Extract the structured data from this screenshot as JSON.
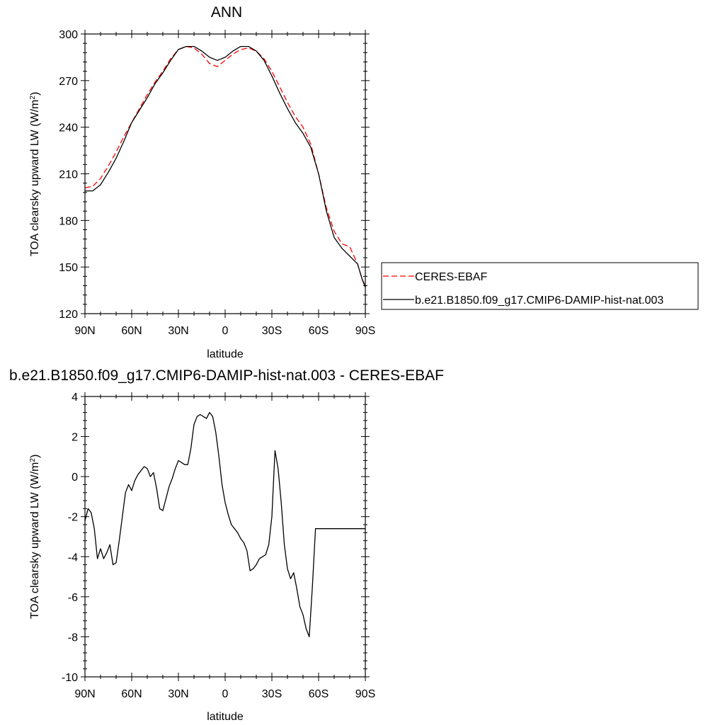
{
  "chart_data": [
    {
      "type": "line",
      "title": "ANN",
      "xlabel": "latitude",
      "ylabel": "TOA clearsky upward LW (W/m²)",
      "xlim": [
        -90,
        90
      ],
      "ylim": [
        120,
        300
      ],
      "yticks": [
        120,
        150,
        180,
        210,
        240,
        270,
        300
      ],
      "xticks": [
        -90,
        -60,
        -30,
        0,
        30,
        60,
        90
      ],
      "xtick_labels": [
        "90N",
        "60N",
        "30N",
        "0",
        "30S",
        "60S",
        "90S"
      ],
      "legend_position": "right",
      "series": [
        {
          "name": "CERES-EBAF",
          "color": "#ff0000",
          "dash": "dashed",
          "x": [
            -90,
            -85,
            -80,
            -75,
            -70,
            -65,
            -60,
            -55,
            -50,
            -45,
            -40,
            -35,
            -30,
            -25,
            -20,
            -15,
            -10,
            -5,
            0,
            5,
            10,
            15,
            20,
            25,
            30,
            35,
            40,
            45,
            50,
            55,
            60,
            65,
            70,
            75,
            80,
            85,
            88,
            90
          ],
          "y": [
            201,
            202,
            207,
            215,
            224,
            234,
            243,
            252,
            261,
            269,
            276,
            284,
            290,
            292,
            291,
            287,
            281,
            279,
            283,
            287,
            290,
            291,
            289,
            284,
            276,
            266,
            256,
            247,
            240,
            229,
            210,
            188,
            173,
            165,
            163,
            152,
            142,
            138
          ]
        },
        {
          "name": "b.e21.B1850.f09_g17.CMIP6-DAMIP-hist-nat.003",
          "color": "#000000",
          "dash": "solid",
          "x": [
            -90,
            -85,
            -80,
            -75,
            -70,
            -65,
            -60,
            -55,
            -50,
            -45,
            -40,
            -35,
            -30,
            -25,
            -20,
            -15,
            -10,
            -5,
            0,
            5,
            10,
            15,
            20,
            25,
            30,
            35,
            40,
            45,
            50,
            55,
            60,
            65,
            70,
            75,
            80,
            85,
            88,
            90
          ],
          "y": [
            199,
            199,
            203,
            211,
            220,
            231,
            243,
            251,
            259,
            268,
            275,
            283,
            290,
            292,
            292,
            289,
            285,
            283,
            285,
            289,
            292,
            292,
            289,
            283,
            273,
            262,
            252,
            243,
            236,
            227,
            210,
            186,
            169,
            162,
            157,
            152,
            142,
            137
          ]
        }
      ]
    },
    {
      "type": "line",
      "title": "b.e21.B1850.f09_g17.CMIP6-DAMIP-hist-nat.003 - CERES-EBAF",
      "xlabel": "latitude",
      "ylabel": "TOA clearsky upward LW (W/m²)",
      "xlim": [
        -90,
        90
      ],
      "ylim": [
        -10,
        4
      ],
      "yticks": [
        -10,
        -8,
        -6,
        -4,
        -2,
        0,
        2,
        4
      ],
      "xticks": [
        -90,
        -60,
        -30,
        0,
        30,
        60,
        90
      ],
      "xtick_labels": [
        "90N",
        "60N",
        "30N",
        "0",
        "30S",
        "60S",
        "90S"
      ],
      "series": [
        {
          "color": "#000000",
          "dash": "solid",
          "x": [
            -90,
            -88,
            -86,
            -84,
            -82,
            -80,
            -78,
            -76,
            -74,
            -72,
            -70,
            -68,
            -66,
            -64,
            -62,
            -60,
            -58,
            -56,
            -54,
            -52,
            -50,
            -48,
            -46,
            -44,
            -42,
            -40,
            -38,
            -36,
            -34,
            -32,
            -30,
            -28,
            -26,
            -24,
            -22,
            -20,
            -18,
            -16,
            -14,
            -12,
            -10,
            -8,
            -6,
            -4,
            -2,
            0,
            2,
            4,
            6,
            8,
            10,
            12,
            14,
            16,
            18,
            20,
            22,
            24,
            26,
            28,
            30,
            32,
            34,
            36,
            38,
            40,
            42,
            44,
            46,
            48,
            50,
            52,
            54,
            56,
            58,
            60,
            62,
            64,
            66,
            68,
            70,
            72,
            74,
            76,
            78,
            80,
            82,
            84,
            86,
            88,
            90
          ],
          "y": [
            -2.2,
            -1.6,
            -1.8,
            -2.6,
            -4.1,
            -3.6,
            -4.1,
            -3.8,
            -3.4,
            -4.4,
            -4.3,
            -3.2,
            -2.0,
            -0.8,
            -0.4,
            -0.7,
            -0.2,
            0.1,
            0.3,
            0.5,
            0.4,
            0.0,
            0.2,
            -0.6,
            -1.6,
            -1.7,
            -1.1,
            -0.5,
            -0.1,
            0.4,
            0.8,
            0.7,
            0.6,
            0.6,
            1.4,
            2.6,
            3.0,
            3.1,
            3.0,
            2.9,
            3.2,
            3.0,
            2.2,
            1.0,
            -0.4,
            -1.3,
            -1.9,
            -2.4,
            -2.6,
            -2.8,
            -3.1,
            -3.3,
            -3.7,
            -4.7,
            -4.6,
            -4.4,
            -4.1,
            -4.0,
            -3.9,
            -3.4,
            -2.0,
            1.3,
            0.4,
            -1.3,
            -3.4,
            -4.6,
            -5.1,
            -4.8,
            -5.6,
            -6.5,
            -6.9,
            -7.6,
            -8.0,
            -5.5,
            -2.6,
            -2.6,
            -2.6,
            -2.6,
            -2.6,
            -2.6,
            -2.6,
            -2.6,
            -2.6,
            -2.6,
            -2.6,
            -2.6,
            -2.6,
            -2.6,
            -2.6,
            -2.6,
            -2.6
          ]
        }
      ]
    }
  ]
}
